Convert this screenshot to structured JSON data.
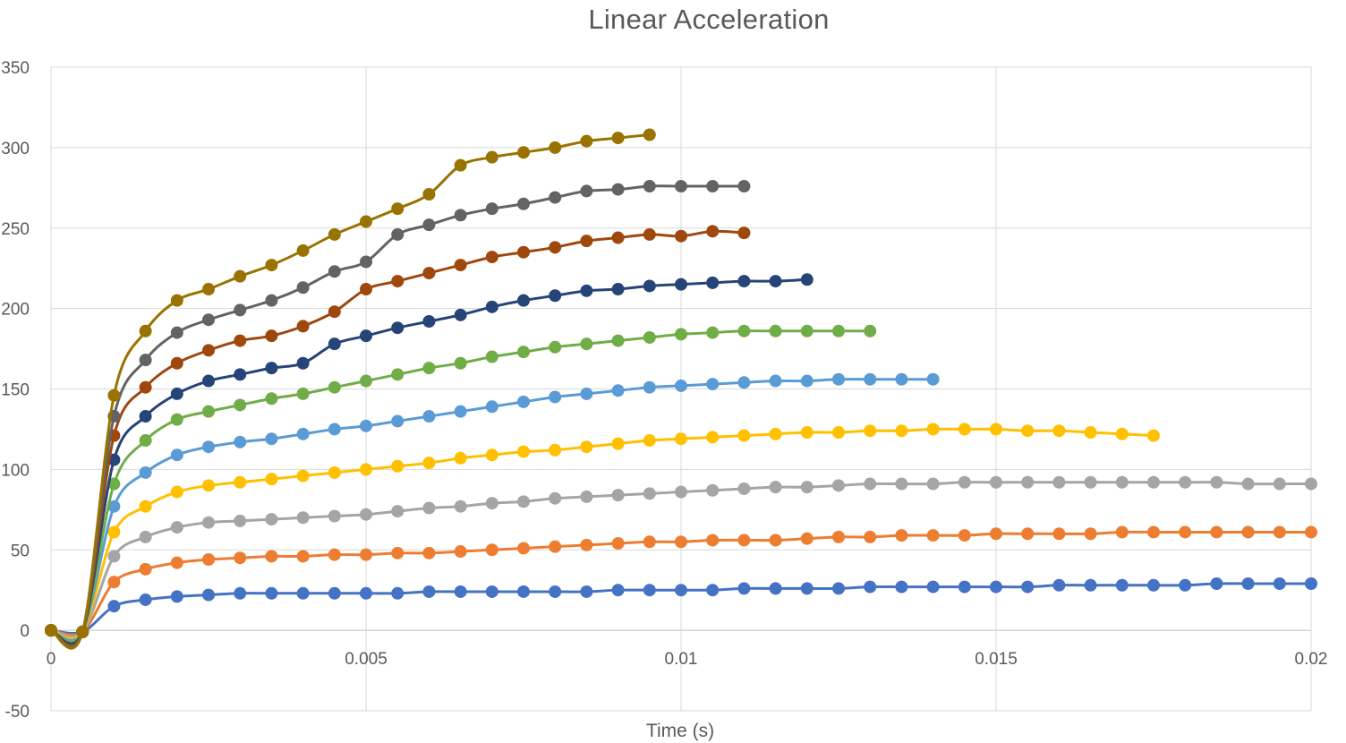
{
  "chart_data": {
    "type": "scatter",
    "title": "Linear Acceleration",
    "xlabel": "Time (s)",
    "ylabel": "",
    "xlim": [
      0,
      0.02
    ],
    "ylim": [
      -50,
      350
    ],
    "x_ticks": [
      "0",
      "0.005",
      "0.01",
      "0.015",
      "0.02"
    ],
    "y_ticks": [
      "-50",
      "0",
      "50",
      "100",
      "150",
      "200",
      "250",
      "300",
      "350"
    ],
    "grid": true,
    "legend": "none",
    "series": [
      {
        "color": "#4472C4",
        "x": [
          0,
          0.0005,
          0.001,
          0.0015,
          0.002,
          0.0025,
          0.003,
          0.0035,
          0.004,
          0.0045,
          0.005,
          0.0055,
          0.006,
          0.0065,
          0.007,
          0.0075,
          0.008,
          0.0085,
          0.009,
          0.0095,
          0.01,
          0.0105,
          0.011,
          0.0115,
          0.012,
          0.0125,
          0.013,
          0.0135,
          0.014,
          0.0145,
          0.015,
          0.0155,
          0.016,
          0.0165,
          0.017,
          0.0175,
          0.018,
          0.0185,
          0.019,
          0.0195,
          0.02
        ],
        "y": [
          0,
          -1,
          15,
          19,
          21,
          22,
          23,
          23,
          23,
          23,
          23,
          23,
          24,
          24,
          24,
          24,
          24,
          24,
          25,
          25,
          25,
          25,
          26,
          26,
          26,
          26,
          27,
          27,
          27,
          27,
          27,
          27,
          28,
          28,
          28,
          28,
          28,
          29,
          29,
          29,
          29
        ]
      },
      {
        "color": "#ED7D31",
        "x": [
          0,
          0.0005,
          0.001,
          0.0015,
          0.002,
          0.0025,
          0.003,
          0.0035,
          0.004,
          0.0045,
          0.005,
          0.0055,
          0.006,
          0.0065,
          0.007,
          0.0075,
          0.008,
          0.0085,
          0.009,
          0.0095,
          0.01,
          0.0105,
          0.011,
          0.0115,
          0.012,
          0.0125,
          0.013,
          0.0135,
          0.014,
          0.0145,
          0.015,
          0.0155,
          0.016,
          0.0165,
          0.017,
          0.0175,
          0.018,
          0.0185,
          0.019,
          0.0195,
          0.02
        ],
        "y": [
          0,
          -1,
          30,
          38,
          42,
          44,
          45,
          46,
          46,
          47,
          47,
          48,
          48,
          49,
          50,
          51,
          52,
          53,
          54,
          55,
          55,
          56,
          56,
          56,
          57,
          58,
          58,
          59,
          59,
          59,
          60,
          60,
          60,
          60,
          61,
          61,
          61,
          61,
          61,
          61,
          61
        ]
      },
      {
        "color": "#A5A5A5",
        "x": [
          0,
          0.0005,
          0.001,
          0.0015,
          0.002,
          0.0025,
          0.003,
          0.0035,
          0.004,
          0.0045,
          0.005,
          0.0055,
          0.006,
          0.0065,
          0.007,
          0.0075,
          0.008,
          0.0085,
          0.009,
          0.0095,
          0.01,
          0.0105,
          0.011,
          0.0115,
          0.012,
          0.0125,
          0.013,
          0.0135,
          0.014,
          0.0145,
          0.015,
          0.0155,
          0.016,
          0.0165,
          0.017,
          0.0175,
          0.018,
          0.0185,
          0.019,
          0.0195,
          0.02
        ],
        "y": [
          0,
          -1,
          46,
          58,
          64,
          67,
          68,
          69,
          70,
          71,
          72,
          74,
          76,
          77,
          79,
          80,
          82,
          83,
          84,
          85,
          86,
          87,
          88,
          89,
          89,
          90,
          91,
          91,
          91,
          92,
          92,
          92,
          92,
          92,
          92,
          92,
          92,
          92,
          91,
          91,
          91
        ]
      },
      {
        "color": "#FFC000",
        "x": [
          0,
          0.0005,
          0.001,
          0.0015,
          0.002,
          0.0025,
          0.003,
          0.0035,
          0.004,
          0.0045,
          0.005,
          0.0055,
          0.006,
          0.0065,
          0.007,
          0.0075,
          0.008,
          0.0085,
          0.009,
          0.0095,
          0.01,
          0.0105,
          0.011,
          0.0115,
          0.012,
          0.0125,
          0.013,
          0.0135,
          0.014,
          0.0145,
          0.015,
          0.0155,
          0.016,
          0.0165,
          0.017,
          0.0175
        ],
        "y": [
          0,
          -1,
          61,
          77,
          86,
          90,
          92,
          94,
          96,
          98,
          100,
          102,
          104,
          107,
          109,
          111,
          112,
          114,
          116,
          118,
          119,
          120,
          121,
          122,
          123,
          123,
          124,
          124,
          125,
          125,
          125,
          124,
          124,
          123,
          122,
          121
        ]
      },
      {
        "color": "#5B9BD5",
        "x": [
          0,
          0.0005,
          0.001,
          0.0015,
          0.002,
          0.0025,
          0.003,
          0.0035,
          0.004,
          0.0045,
          0.005,
          0.0055,
          0.006,
          0.0065,
          0.007,
          0.0075,
          0.008,
          0.0085,
          0.009,
          0.0095,
          0.01,
          0.0105,
          0.011,
          0.0115,
          0.012,
          0.0125,
          0.013,
          0.0135,
          0.014
        ],
        "y": [
          0,
          -1,
          77,
          98,
          109,
          114,
          117,
          119,
          122,
          125,
          127,
          130,
          133,
          136,
          139,
          142,
          145,
          147,
          149,
          151,
          152,
          153,
          154,
          155,
          155,
          156,
          156,
          156,
          156
        ]
      },
      {
        "color": "#70AD47",
        "x": [
          0,
          0.0005,
          0.001,
          0.0015,
          0.002,
          0.0025,
          0.003,
          0.0035,
          0.004,
          0.0045,
          0.005,
          0.0055,
          0.006,
          0.0065,
          0.007,
          0.0075,
          0.008,
          0.0085,
          0.009,
          0.0095,
          0.01,
          0.0105,
          0.011,
          0.0115,
          0.012,
          0.0125,
          0.013
        ],
        "y": [
          0,
          -1,
          91,
          118,
          131,
          136,
          140,
          144,
          147,
          151,
          155,
          159,
          163,
          166,
          170,
          173,
          176,
          178,
          180,
          182,
          184,
          185,
          186,
          186,
          186,
          186,
          186
        ]
      },
      {
        "color": "#264478",
        "x": [
          0,
          0.0005,
          0.001,
          0.0015,
          0.002,
          0.0025,
          0.003,
          0.0035,
          0.004,
          0.0045,
          0.005,
          0.0055,
          0.006,
          0.0065,
          0.007,
          0.0075,
          0.008,
          0.0085,
          0.009,
          0.0095,
          0.01,
          0.0105,
          0.011,
          0.0115,
          0.012
        ],
        "y": [
          0,
          -1,
          106,
          133,
          147,
          155,
          159,
          163,
          166,
          178,
          183,
          188,
          192,
          196,
          201,
          205,
          208,
          211,
          212,
          214,
          215,
          216,
          217,
          217,
          218
        ]
      },
      {
        "color": "#9E480E",
        "x": [
          0,
          0.0005,
          0.001,
          0.0015,
          0.002,
          0.0025,
          0.003,
          0.0035,
          0.004,
          0.0045,
          0.005,
          0.0055,
          0.006,
          0.0065,
          0.007,
          0.0075,
          0.008,
          0.0085,
          0.009,
          0.0095,
          0.01,
          0.0105,
          0.011
        ],
        "y": [
          0,
          -1,
          121,
          151,
          166,
          174,
          180,
          183,
          189,
          198,
          212,
          217,
          222,
          227,
          232,
          235,
          238,
          242,
          244,
          246,
          245,
          248,
          247
        ]
      },
      {
        "color": "#636363",
        "x": [
          0,
          0.0005,
          0.001,
          0.0015,
          0.002,
          0.0025,
          0.003,
          0.0035,
          0.004,
          0.0045,
          0.005,
          0.0055,
          0.006,
          0.0065,
          0.007,
          0.0075,
          0.008,
          0.0085,
          0.009,
          0.0095,
          0.01,
          0.0105,
          0.011
        ],
        "y": [
          0,
          -1,
          133,
          168,
          185,
          193,
          199,
          205,
          213,
          223,
          229,
          246,
          252,
          258,
          262,
          265,
          269,
          273,
          274,
          276,
          276,
          276,
          276
        ]
      },
      {
        "color": "#997300",
        "x": [
          0,
          0.0005,
          0.001,
          0.0015,
          0.002,
          0.0025,
          0.003,
          0.0035,
          0.004,
          0.0045,
          0.005,
          0.0055,
          0.006,
          0.0065,
          0.007,
          0.0075,
          0.008,
          0.0085,
          0.009,
          0.0095
        ],
        "y": [
          0,
          -1,
          146,
          186,
          205,
          212,
          220,
          227,
          236,
          246,
          254,
          262,
          271,
          289,
          294,
          297,
          300,
          304,
          306,
          308
        ]
      }
    ]
  }
}
